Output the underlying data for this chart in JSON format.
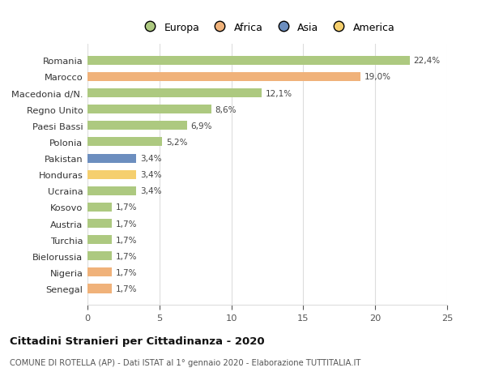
{
  "categories": [
    "Romania",
    "Marocco",
    "Macedonia d/N.",
    "Regno Unito",
    "Paesi Bassi",
    "Polonia",
    "Pakistan",
    "Honduras",
    "Ucraina",
    "Kosovo",
    "Austria",
    "Turchia",
    "Bielorussia",
    "Nigeria",
    "Senegal"
  ],
  "values": [
    22.4,
    19.0,
    12.1,
    8.6,
    6.9,
    5.2,
    3.4,
    3.4,
    3.4,
    1.7,
    1.7,
    1.7,
    1.7,
    1.7,
    1.7
  ],
  "labels": [
    "22,4%",
    "19,0%",
    "12,1%",
    "8,6%",
    "6,9%",
    "5,2%",
    "3,4%",
    "3,4%",
    "3,4%",
    "1,7%",
    "1,7%",
    "1,7%",
    "1,7%",
    "1,7%",
    "1,7%"
  ],
  "colors": [
    "#adc980",
    "#f0b27a",
    "#adc980",
    "#adc980",
    "#adc980",
    "#adc980",
    "#6c8ebf",
    "#f5cf6e",
    "#adc980",
    "#adc980",
    "#adc980",
    "#adc980",
    "#adc980",
    "#f0b27a",
    "#f0b27a"
  ],
  "legend_labels": [
    "Europa",
    "Africa",
    "Asia",
    "America"
  ],
  "legend_colors": [
    "#adc980",
    "#f0b27a",
    "#6c8ebf",
    "#f5cf6e"
  ],
  "title": "Cittadini Stranieri per Cittadinanza - 2020",
  "subtitle": "COMUNE DI ROTELLA (AP) - Dati ISTAT al 1° gennaio 2020 - Elaborazione TUTTITALIA.IT",
  "xlim": [
    0,
    25
  ],
  "xticks": [
    0,
    5,
    10,
    15,
    20,
    25
  ],
  "background_color": "#ffffff",
  "grid_color": "#dddddd",
  "bar_height": 0.55
}
